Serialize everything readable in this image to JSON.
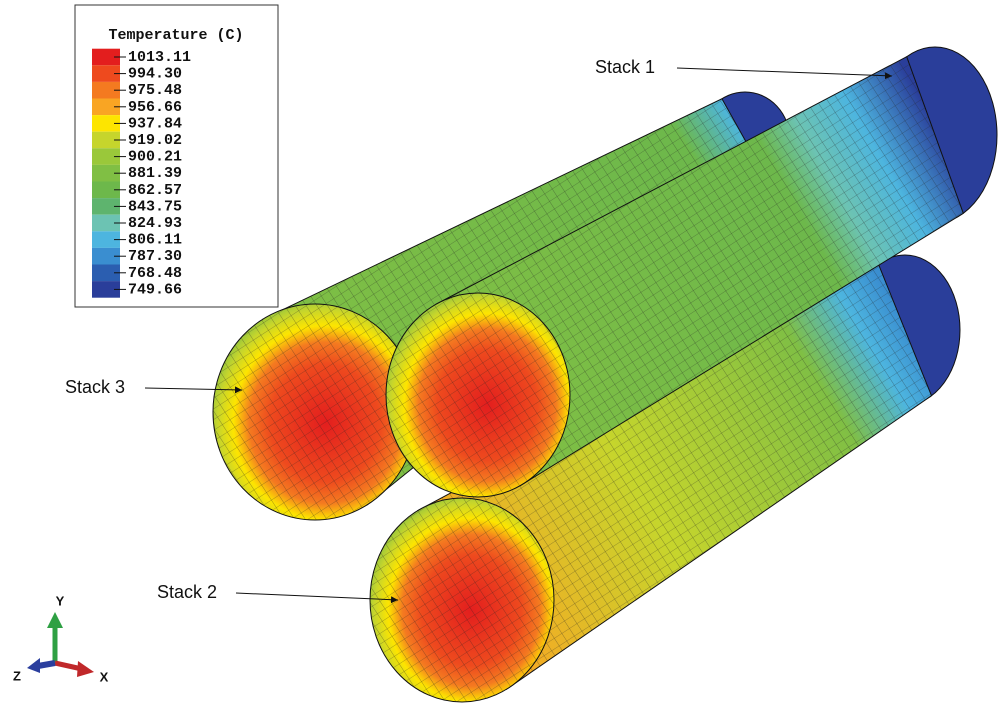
{
  "legend": {
    "title": "Temperature (C)",
    "values": [
      "1013.11",
      "994.30",
      "975.48",
      "956.66",
      "937.84",
      "919.02",
      "900.21",
      "881.39",
      "862.57",
      "843.75",
      "824.93",
      "806.11",
      "787.30",
      "768.48",
      "749.66"
    ],
    "colors": [
      "#e31e1e",
      "#ee4a1e",
      "#f47a20",
      "#f9a523",
      "#fde500",
      "#c6d52c",
      "#9ac83a",
      "#80bf44",
      "#6db84b",
      "#5eb46e",
      "#6cc3b3",
      "#4db5df",
      "#3a8ed0",
      "#2b5eb0",
      "#2a3e9a"
    ]
  },
  "labels": {
    "stack_1": "Stack 1",
    "stack_2": "Stack 2",
    "stack_3": "Stack 3"
  },
  "axes": {
    "x": "X",
    "y": "Y",
    "z": "Z"
  }
}
